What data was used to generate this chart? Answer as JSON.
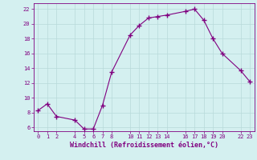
{
  "x": [
    0,
    1,
    2,
    4,
    5,
    6,
    7,
    8,
    10,
    11,
    12,
    13,
    14,
    16,
    17,
    18,
    19,
    20,
    22,
    23
  ],
  "y": [
    8.3,
    9.2,
    7.5,
    7.0,
    5.8,
    5.8,
    9.0,
    13.5,
    18.5,
    19.8,
    20.8,
    21.0,
    21.2,
    21.7,
    22.0,
    20.5,
    18.0,
    16.0,
    13.7,
    12.2
  ],
  "xticks": [
    0,
    1,
    2,
    4,
    5,
    6,
    7,
    8,
    10,
    11,
    12,
    13,
    14,
    16,
    17,
    18,
    19,
    20,
    22,
    23
  ],
  "yticks": [
    6,
    8,
    10,
    12,
    14,
    16,
    18,
    20,
    22
  ],
  "ylim": [
    5.5,
    22.8
  ],
  "xlim": [
    -0.5,
    23.5
  ],
  "line_color": "#800080",
  "marker_color": "#800080",
  "bg_color": "#d4f0f0",
  "grid_color": "#b8dada",
  "xlabel": "Windchill (Refroidissement éolien,°C)",
  "font_color": "#800080"
}
